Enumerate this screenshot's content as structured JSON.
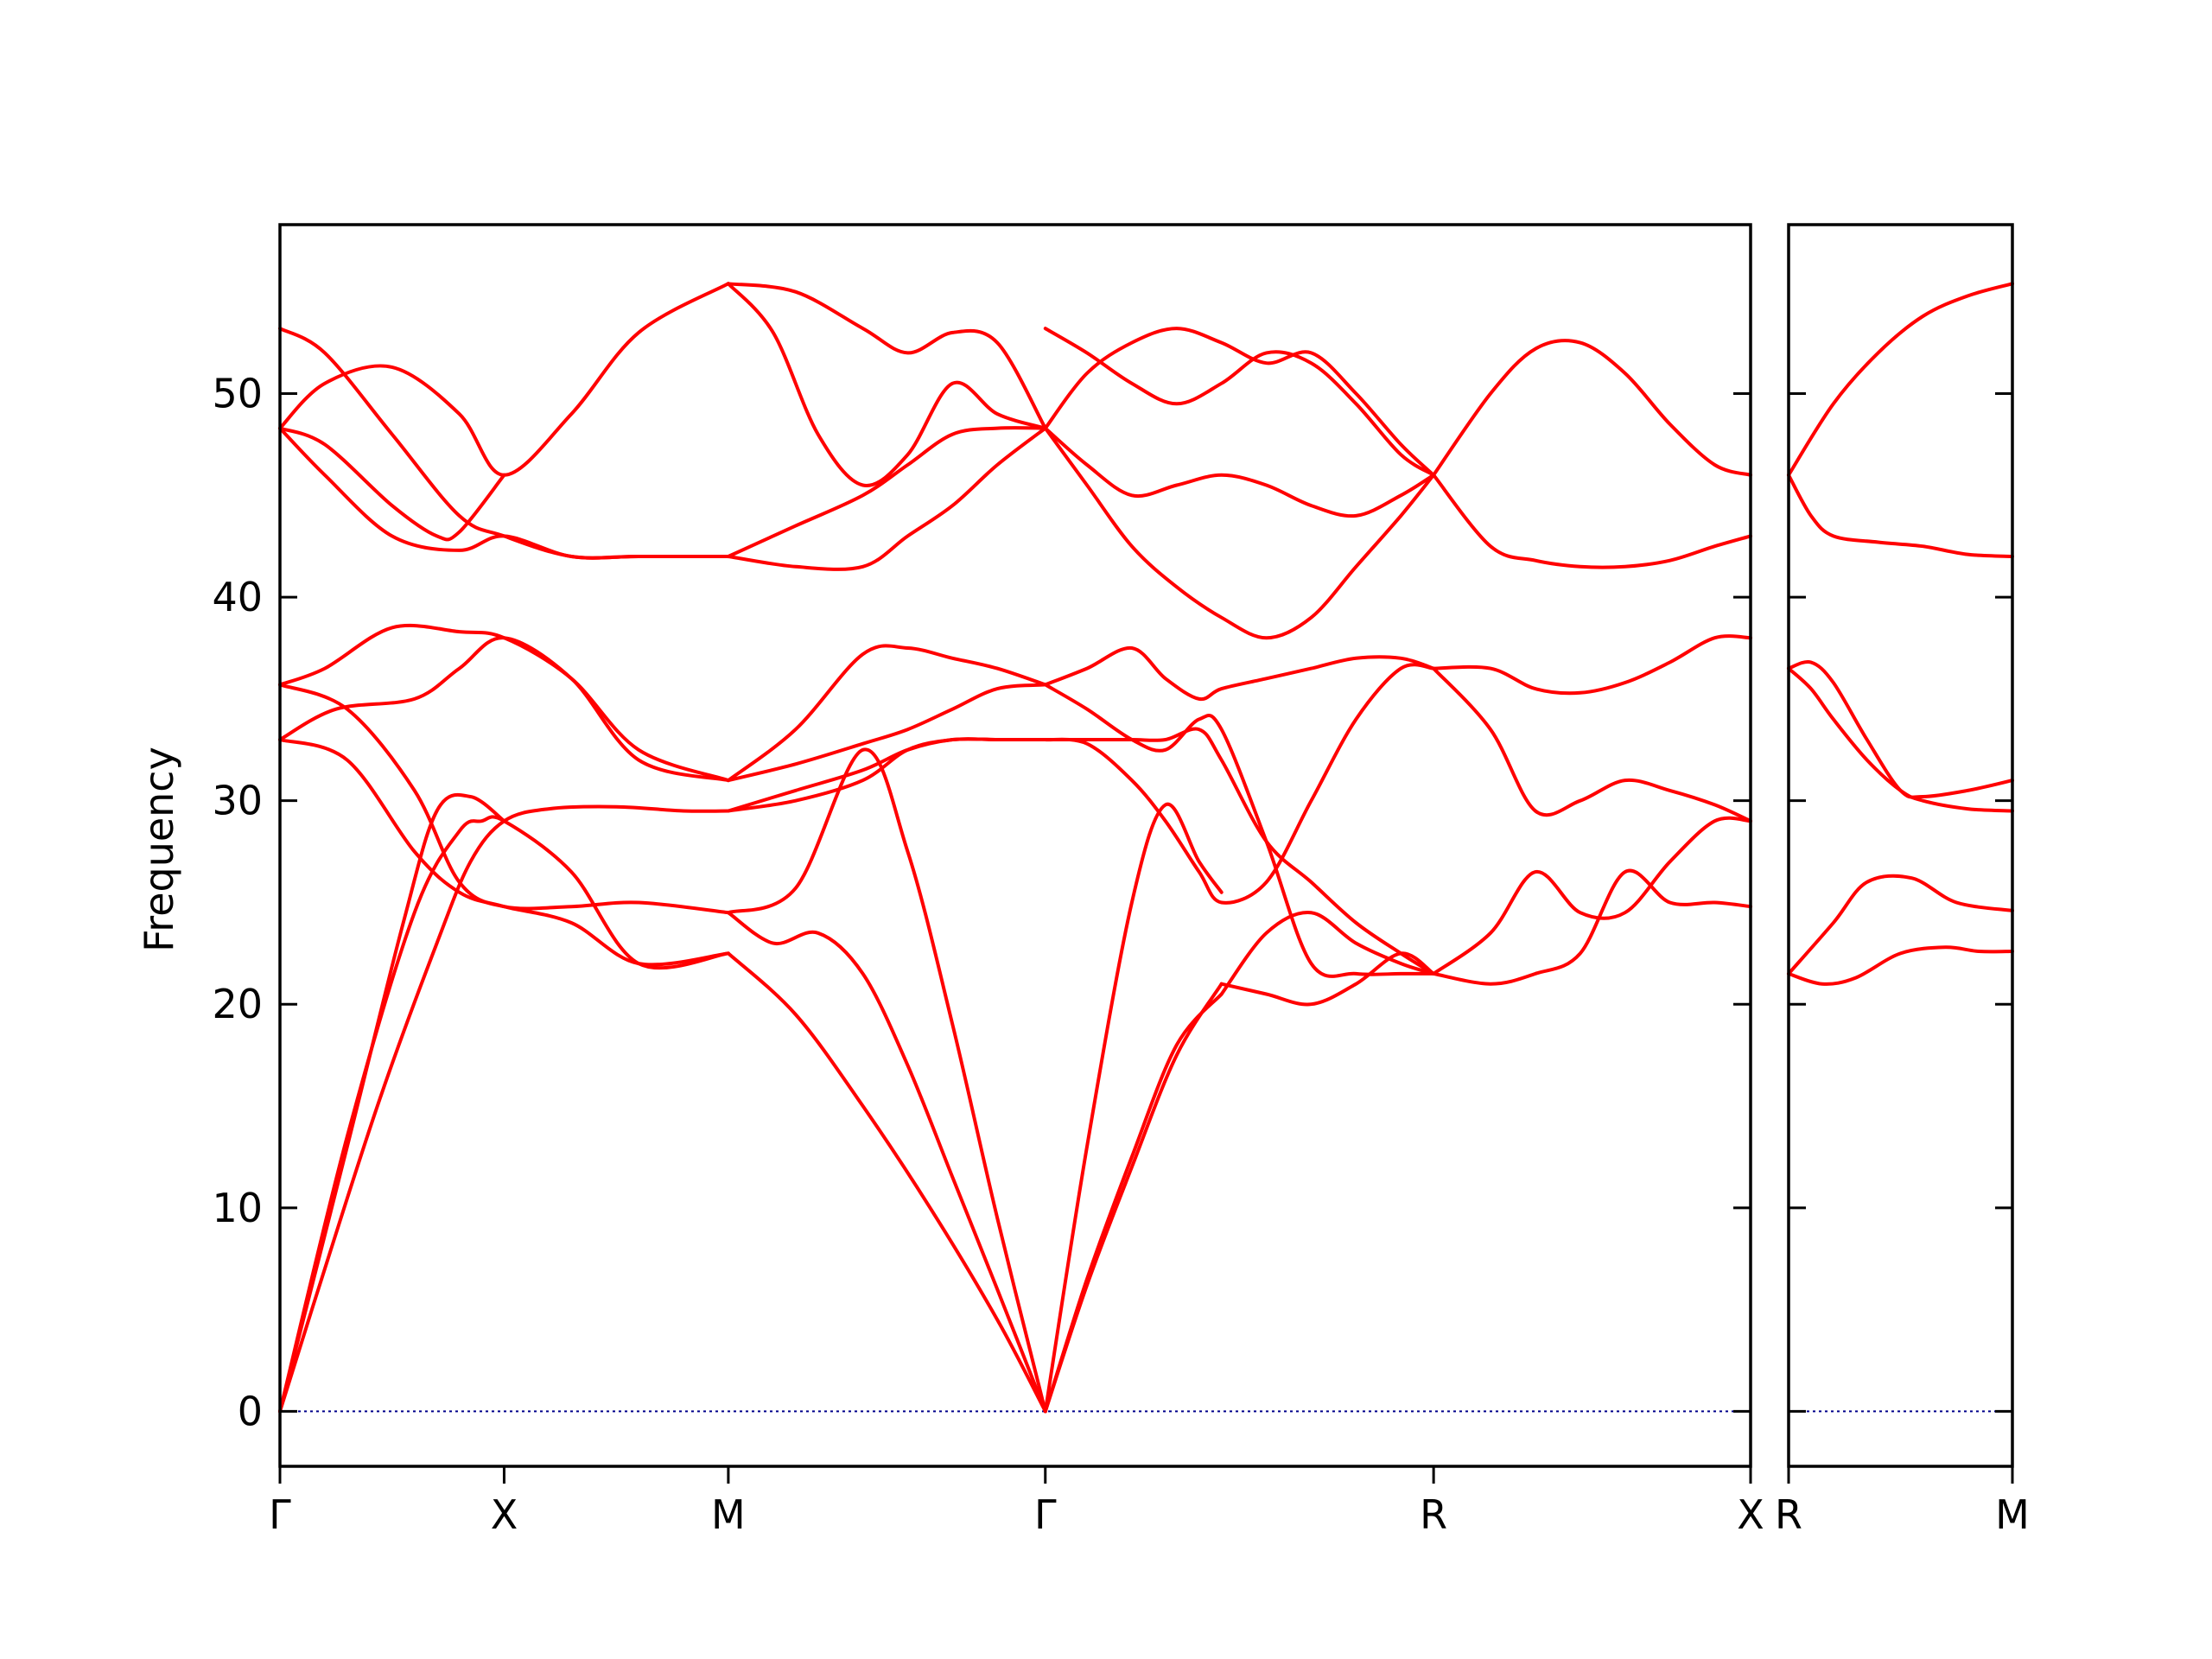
{
  "chart_data": {
    "type": "line",
    "ylabel": "Frequency",
    "ylim": [
      -2.7,
      58.3
    ],
    "yticks": [
      0,
      10,
      20,
      30,
      40,
      50
    ],
    "line_color": "#ff0000",
    "zero_line_color": "#00008b",
    "panels": [
      {
        "xticks": [
          {
            "pos": 0,
            "label": "Γ"
          },
          {
            "pos": 1,
            "label": "X"
          },
          {
            "pos": 2,
            "label": "M"
          },
          {
            "pos": 3.414,
            "label": "Γ"
          },
          {
            "pos": 5.146,
            "label": "R"
          },
          {
            "pos": 6.56,
            "label": "X"
          }
        ],
        "xlim": [
          0,
          6.56
        ],
        "series": [
          {
            "x": [
              0,
              0.2,
              0.45,
              0.7,
              0.85,
              1.0,
              1.2,
              1.5,
              1.8,
              2.0
            ],
            "y": [
              0.0,
              7.0,
              15.5,
              23.0,
              27.0,
              29.0,
              29.6,
              29.7,
              29.5,
              29.5
            ]
          },
          {
            "x": [
              0,
              0.3,
              0.55,
              0.7,
              0.85,
              1.0
            ],
            "y": [
              0.0,
              13.0,
              24.0,
              29.5,
              30.2,
              29.0
            ]
          },
          {
            "x": [
              0,
              0.3,
              0.6,
              0.8,
              0.9,
              1.0,
              1.3,
              1.6,
              2.0
            ],
            "y": [
              0.0,
              13.5,
              24.5,
              28.5,
              29.0,
              29.0,
              26.5,
              22.0,
              22.5
            ]
          },
          {
            "x": [
              2.0,
              2.3,
              2.6,
              2.9,
              3.2,
              3.414
            ],
            "y": [
              22.5,
              19.5,
              15.0,
              10.0,
              4.5,
              0.0
            ]
          },
          {
            "x": [
              2.0,
              2.2,
              2.4,
              2.6,
              2.8,
              3.0,
              3.2,
              3.414
            ],
            "y": [
              24.5,
              23.0,
              23.5,
              21.5,
              17.0,
              11.5,
              6.0,
              0.0
            ]
          },
          {
            "x": [
              2.0,
              2.3,
              2.6,
              2.8,
              3.0,
              3.2,
              3.414
            ],
            "y": [
              24.5,
              25.7,
              32.5,
              27.5,
              19.0,
              9.5,
              0.0
            ]
          },
          {
            "x": [
              3.414,
              3.6,
              3.8,
              3.95,
              4.1,
              4.2
            ],
            "y": [
              0.0,
              13.0,
              25.0,
              29.8,
              27.0,
              25.5
            ]
          },
          {
            "x": [
              3.414,
              3.6,
              3.8,
              4.0,
              4.2
            ],
            "y": [
              0.0,
              6.2,
              12.0,
              17.5,
              21.0
            ]
          },
          {
            "x": [
              3.414,
              3.6,
              3.8,
              4.0,
              4.2
            ],
            "y": [
              0.0,
              6.5,
              12.5,
              18.0,
              20.5
            ]
          },
          {
            "x": [
              0,
              0.2,
              0.5,
              0.8,
              1.0,
              1.3,
              1.6,
              2.0
            ],
            "y": [
              35.7,
              36.5,
              38.5,
              38.3,
              38.0,
              36.0,
              32.5,
              31.0
            ]
          },
          {
            "x": [
              0,
              0.25,
              0.6,
              0.8,
              1.0,
              1.3,
              1.6,
              2.0
            ],
            "y": [
              33.0,
              34.5,
              35.0,
              36.5,
              38.0,
              36.0,
              32.0,
              31.0
            ]
          },
          {
            "x": [
              0,
              0.3,
              0.6,
              0.8,
              1.0,
              1.3,
              1.6,
              2.0
            ],
            "y": [
              35.7,
              34.5,
              30.5,
              26.0,
              24.8,
              24.8,
              25.0,
              24.5
            ]
          },
          {
            "x": [
              0,
              0.3,
              0.6,
              0.8,
              1.0,
              1.3,
              1.6,
              2.0
            ],
            "y": [
              33.0,
              32.0,
              27.5,
              25.5,
              24.8,
              24.0,
              22.0,
              22.5
            ]
          },
          {
            "x": [
              2.0,
              2.3,
              2.6,
              2.8,
              3.0,
              3.2,
              3.414
            ],
            "y": [
              31.0,
              33.5,
              37.2,
              37.5,
              37.0,
              36.5,
              35.7
            ]
          },
          {
            "x": [
              2.0,
              2.3,
              2.6,
              2.8,
              3.0,
              3.2,
              3.414
            ],
            "y": [
              29.5,
              30.5,
              31.5,
              32.5,
              33.0,
              33.0,
              33.0
            ]
          },
          {
            "x": [
              2.0,
              2.3,
              2.6,
              2.8,
              3.0,
              3.2,
              3.414
            ],
            "y": [
              31.0,
              31.8,
              32.8,
              33.5,
              34.5,
              35.5,
              35.7
            ]
          },
          {
            "x": [
              2.0,
              2.3,
              2.6,
              2.8,
              3.0,
              3.2,
              3.414
            ],
            "y": [
              29.5,
              30.0,
              31.0,
              32.5,
              33.0,
              33.0,
              33.0
            ]
          },
          {
            "x": [
              3.414,
              3.6,
              3.8,
              3.95,
              4.1,
              4.2,
              4.4,
              4.6,
              4.8,
              5.0,
              5.146
            ],
            "y": [
              35.7,
              36.5,
              37.5,
              36.0,
              35.0,
              35.5,
              36.0,
              36.5,
              37.0,
              37.0,
              36.5
            ]
          },
          {
            "x": [
              3.414,
              3.6,
              3.8,
              3.95,
              4.1,
              4.2,
              4.4,
              4.6,
              4.8,
              5.0,
              5.146
            ],
            "y": [
              35.7,
              34.5,
              33.0,
              32.5,
              34.0,
              33.5,
              28.0,
              22.0,
              21.5,
              21.5,
              21.5
            ]
          },
          {
            "x": [
              3.414,
              3.6,
              3.8,
              3.95,
              4.1,
              4.2,
              4.4,
              4.6,
              4.8,
              5.0,
              5.146
            ],
            "y": [
              33.0,
              33.0,
              33.0,
              33.0,
              33.5,
              32.0,
              28.0,
              26.0,
              24.0,
              22.5,
              21.5
            ]
          },
          {
            "x": [
              3.414,
              3.6,
              3.8,
              3.95,
              4.1,
              4.2,
              4.4,
              4.6,
              4.8,
              5.0,
              5.146
            ],
            "y": [
              33.0,
              32.8,
              31.0,
              29.0,
              26.5,
              25.0,
              26.0,
              30.0,
              34.0,
              36.5,
              36.5
            ]
          },
          {
            "x": [
              4.2,
              4.4,
              4.6,
              4.8,
              5.0,
              5.146
            ],
            "y": [
              21.0,
              20.5,
              20.0,
              21.0,
              22.5,
              21.5
            ]
          },
          {
            "x": [
              4.2,
              4.4,
              4.6,
              4.8,
              5.0,
              5.146
            ],
            "y": [
              20.5,
              23.5,
              24.5,
              23.0,
              22.0,
              21.5
            ]
          },
          {
            "x": [
              5.146,
              5.4,
              5.6,
              5.8,
              6.0,
              6.2,
              6.4,
              6.56
            ],
            "y": [
              36.5,
              36.5,
              35.5,
              35.3,
              35.8,
              36.8,
              38.0,
              38.0
            ]
          },
          {
            "x": [
              5.146,
              5.4,
              5.6,
              5.8,
              6.0,
              6.2,
              6.4,
              6.56
            ],
            "y": [
              36.5,
              33.5,
              29.5,
              30.0,
              31.0,
              30.5,
              29.8,
              29.0
            ]
          },
          {
            "x": [
              5.146,
              5.4,
              5.6,
              5.8,
              6.0,
              6.2,
              6.4,
              6.56
            ],
            "y": [
              21.5,
              21.0,
              21.5,
              22.5,
              26.5,
              25.0,
              25.0,
              24.8
            ]
          },
          {
            "x": [
              5.146,
              5.4,
              5.6,
              5.8,
              6.0,
              6.2,
              6.4,
              6.56
            ],
            "y": [
              21.5,
              23.5,
              26.5,
              24.5,
              24.5,
              27.0,
              29.0,
              29.0
            ]
          },
          {
            "x": [
              0,
              0.2,
              0.5,
              0.8,
              1.0,
              1.3,
              1.6,
              2.0
            ],
            "y": [
              48.3,
              50.5,
              51.3,
              49.0,
              46.0,
              49.0,
              53.0,
              55.4
            ]
          },
          {
            "x": [
              0,
              0.2,
              0.5,
              0.8,
              1.0,
              1.3,
              1.6,
              2.0
            ],
            "y": [
              53.2,
              52.0,
              48.0,
              44.0,
              43.0,
              42.0,
              42.0,
              42.0
            ]
          },
          {
            "x": [
              0,
              0.2,
              0.5,
              0.7,
              0.8,
              1.0
            ],
            "y": [
              48.3,
              47.5,
              44.5,
              43.0,
              43.2,
              46.0
            ]
          },
          {
            "x": [
              0,
              0.2,
              0.5,
              0.8,
              1.0,
              1.3,
              1.6,
              2.0
            ],
            "y": [
              48.3,
              46.0,
              43.0,
              42.3,
              43.0,
              42.0,
              42.0,
              42.0
            ]
          },
          {
            "x": [
              2.0,
              2.3,
              2.6,
              2.8,
              3.0,
              3.2,
              3.414
            ],
            "y": [
              55.4,
              55.0,
              53.2,
              52.0,
              53.0,
              52.5,
              48.3
            ]
          },
          {
            "x": [
              2.0,
              2.2,
              2.4,
              2.6,
              2.8,
              3.0,
              3.2,
              3.414
            ],
            "y": [
              55.4,
              53.0,
              48.0,
              45.5,
              47.0,
              50.5,
              49.0,
              48.3
            ]
          },
          {
            "x": [
              2.0,
              2.3,
              2.6,
              2.8,
              3.0,
              3.2,
              3.414
            ],
            "y": [
              42.0,
              43.5,
              45.0,
              46.5,
              48.0,
              48.3,
              48.3
            ]
          },
          {
            "x": [
              2.0,
              2.3,
              2.6,
              2.8,
              3.0,
              3.2,
              3.414
            ],
            "y": [
              42.0,
              41.5,
              41.5,
              43.0,
              44.5,
              46.5,
              48.3
            ]
          },
          {
            "x": [
              3.414,
              3.6,
              3.8,
              4.0,
              4.2,
              4.4,
              4.6,
              4.8,
              5.0,
              5.146
            ],
            "y": [
              48.3,
              51.0,
              52.5,
              53.2,
              52.5,
              51.5,
              52.0,
              50.0,
              47.5,
              46.0
            ]
          },
          {
            "x": [
              3.414,
              3.6,
              3.8,
              4.0,
              4.2,
              4.4,
              4.6,
              4.8,
              5.0,
              5.146
            ],
            "y": [
              53.2,
              52.0,
              50.5,
              49.5,
              50.5,
              52.0,
              51.5,
              49.5,
              47.0,
              46.0
            ]
          },
          {
            "x": [
              3.414,
              3.6,
              3.8,
              4.0,
              4.2,
              4.4,
              4.6,
              4.8,
              5.0,
              5.146
            ],
            "y": [
              48.3,
              46.5,
              45.0,
              45.5,
              46.0,
              45.5,
              44.5,
              44.0,
              45.0,
              46.0
            ]
          },
          {
            "x": [
              3.414,
              3.6,
              3.8,
              4.0,
              4.2,
              4.4,
              4.6,
              4.8,
              5.0,
              5.146
            ],
            "y": [
              48.3,
              45.5,
              42.5,
              40.5,
              39.0,
              38.0,
              39.0,
              41.5,
              44.0,
              46.0
            ]
          },
          {
            "x": [
              5.146,
              5.4,
              5.6,
              5.8,
              6.0,
              6.2,
              6.4,
              6.56
            ],
            "y": [
              46.0,
              50.0,
              52.2,
              52.5,
              51.0,
              48.5,
              46.5,
              46.0
            ]
          },
          {
            "x": [
              5.146,
              5.4,
              5.6,
              5.8,
              6.0,
              6.2,
              6.4,
              6.56
            ],
            "y": [
              46.0,
              42.5,
              41.8,
              41.5,
              41.5,
              41.8,
              42.5,
              43.0
            ]
          }
        ]
      },
      {
        "xticks": [
          {
            "pos": 0,
            "label": "R"
          },
          {
            "pos": 1,
            "label": "M"
          }
        ],
        "xlim": [
          0,
          1
        ],
        "series": [
          {
            "x": [
              0,
              0.2,
              0.4,
              0.6,
              0.8,
              1.0
            ],
            "y": [
              46.0,
              49.5,
              52.0,
              53.8,
              54.8,
              55.4
            ]
          },
          {
            "x": [
              0,
              0.1,
              0.2,
              0.4,
              0.6,
              0.8,
              1.0
            ],
            "y": [
              46.0,
              44.0,
              43.0,
              42.7,
              42.5,
              42.1,
              42.0
            ]
          },
          {
            "x": [
              0,
              0.1,
              0.2,
              0.35,
              0.5,
              0.6,
              0.8,
              1.0
            ],
            "y": [
              36.5,
              36.8,
              35.8,
              33.0,
              30.5,
              30.2,
              30.5,
              31.0
            ]
          },
          {
            "x": [
              0,
              0.1,
              0.2,
              0.35,
              0.5,
              0.6,
              0.8,
              1.0
            ],
            "y": [
              36.5,
              35.5,
              34.0,
              32.0,
              30.5,
              30.0,
              29.6,
              29.5
            ]
          },
          {
            "x": [
              0,
              0.2,
              0.35,
              0.55,
              0.75,
              1.0
            ],
            "y": [
              21.5,
              24.0,
              26.0,
              26.2,
              25.0,
              24.6
            ]
          },
          {
            "x": [
              0,
              0.15,
              0.3,
              0.5,
              0.7,
              0.85,
              1.0
            ],
            "y": [
              21.5,
              21.0,
              21.3,
              22.5,
              22.8,
              22.6,
              22.6
            ]
          }
        ]
      }
    ]
  }
}
